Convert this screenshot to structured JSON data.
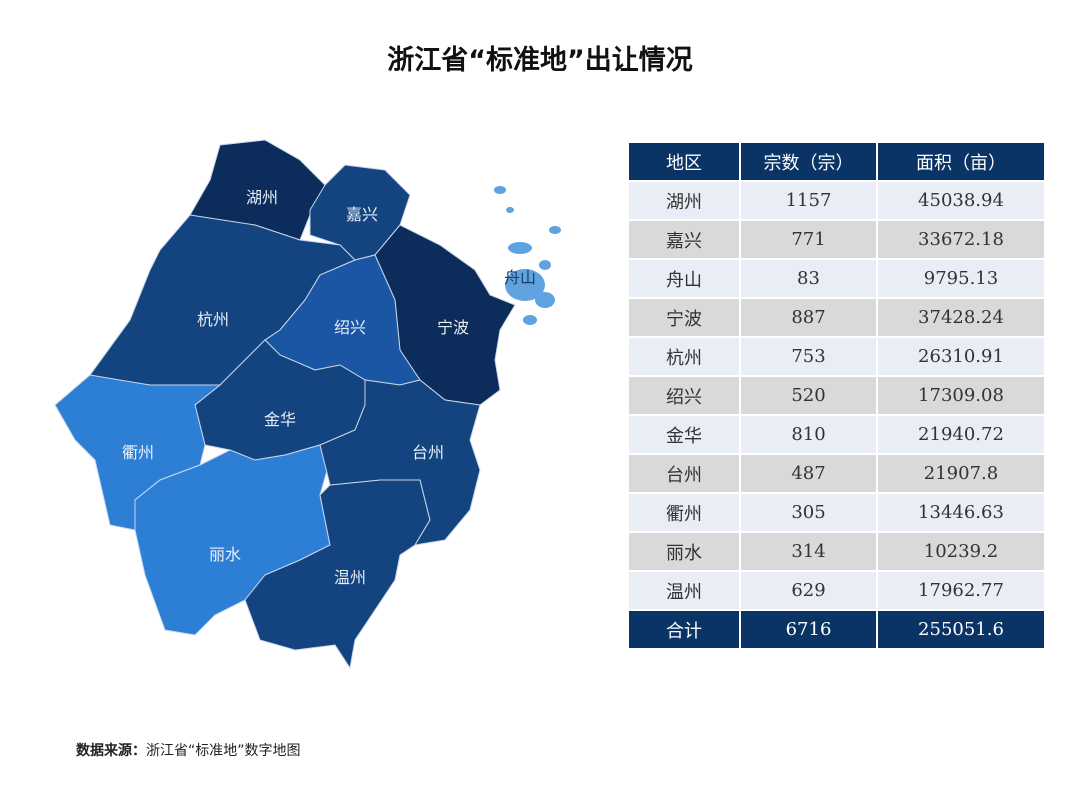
{
  "title": "浙江省“标准地”出让情况",
  "colors": {
    "darkest": "#0c2c5c",
    "dark": "#13447f",
    "medium": "#1a56a3",
    "light": "#2d7fd6",
    "zhoushan": "#5ea3e0",
    "header": "#0b3466"
  },
  "map": {
    "labels": {
      "huzhou": "湖州",
      "jiaxing": "嘉兴",
      "zhoushan": "舟山",
      "ningbo": "宁波",
      "hangzhou": "杭州",
      "shaoxing": "绍兴",
      "jinhua": "金华",
      "taizhou": "台州",
      "quzhou": "衢州",
      "lishui": "丽水",
      "wenzhou": "温州"
    }
  },
  "table": {
    "headers": [
      "地区",
      "宗数（宗）",
      "面积（亩）"
    ],
    "rows": [
      [
        "湖州",
        "1157",
        "45038.94"
      ],
      [
        "嘉兴",
        "771",
        "33672.18"
      ],
      [
        "舟山",
        "83",
        "9795.13"
      ],
      [
        "宁波",
        "887",
        "37428.24"
      ],
      [
        "杭州",
        "753",
        "26310.91"
      ],
      [
        "绍兴",
        "520",
        "17309.08"
      ],
      [
        "金华",
        "810",
        "21940.72"
      ],
      [
        "台州",
        "487",
        "21907.8"
      ],
      [
        "衢州",
        "305",
        "13446.63"
      ],
      [
        "丽水",
        "314",
        "10239.2"
      ],
      [
        "温州",
        "629",
        "17962.77"
      ]
    ],
    "total": [
      "合计",
      "6716",
      "255051.6"
    ]
  },
  "source": {
    "label": "数据来源：",
    "text": "浙江省“标准地”数字地图"
  }
}
